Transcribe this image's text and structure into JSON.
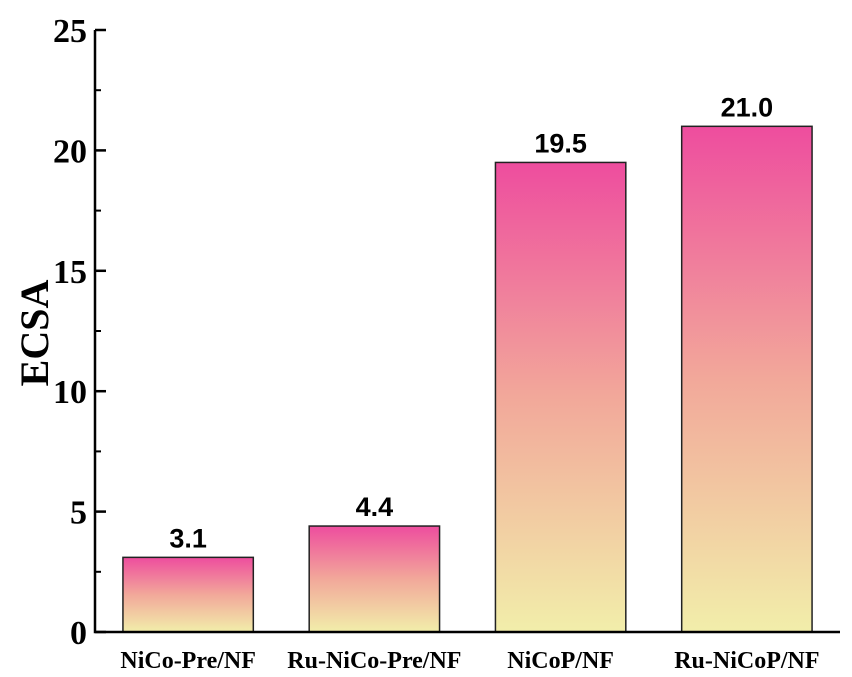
{
  "chart_data": {
    "type": "bar",
    "title": "",
    "xlabel": "",
    "ylabel": "ECSA",
    "categories": [
      "NiCo-Pre/NF",
      "Ru-NiCo-Pre/NF",
      "NiCoP/NF",
      "Ru-NiCoP/NF"
    ],
    "values": [
      3.1,
      4.4,
      19.5,
      21.0
    ],
    "data_labels": [
      "3.1",
      "4.4",
      "19.5",
      "21.0"
    ],
    "ylim": [
      0,
      25
    ],
    "yticks": [
      0,
      5,
      10,
      15,
      20,
      25
    ],
    "ytick_labels": [
      "0",
      "5",
      "10",
      "15",
      "20",
      "25"
    ],
    "grid": false,
    "colors": {
      "bar_top": "#ee4d9e",
      "bar_middle": "#f2a89a",
      "bar_bottom": "#f2eeaa",
      "bar_edge": "#222222",
      "axis": "#000000"
    }
  }
}
